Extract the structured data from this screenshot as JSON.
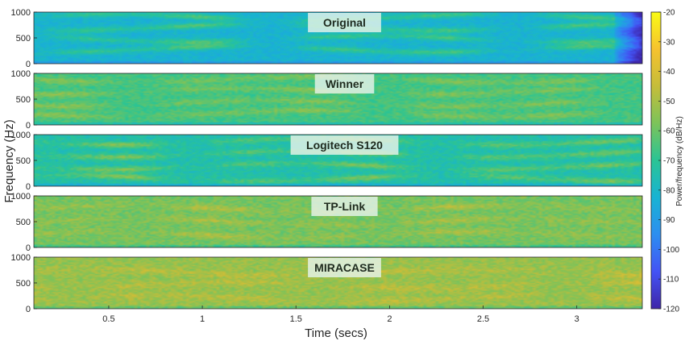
{
  "chart_data": {
    "type": "heatmap",
    "xlabel": "Time (secs)",
    "ylabel": "Frequency (Hz)",
    "xlim": [
      0.1,
      3.35
    ],
    "ylim": [
      0,
      1000
    ],
    "xticks": [
      0.5,
      1,
      1.5,
      2,
      2.5,
      3
    ],
    "xtick_labels": [
      "0.5",
      "1",
      "1.5",
      "2",
      "2.5",
      "3"
    ],
    "yticks": [
      0,
      500,
      1000
    ],
    "ytick_labels": [
      "0",
      "500",
      "1000"
    ],
    "colorbar": {
      "label": "Power/frequency (dB/Hz)",
      "range": [
        -120,
        -20
      ],
      "ticks": [
        -20,
        -30,
        -40,
        -50,
        -60,
        -70,
        -80,
        -90,
        -100,
        -110,
        -120
      ],
      "tick_labels": [
        "-20",
        "-30",
        "-40",
        "-50",
        "-60",
        "-70",
        "-80",
        "-90",
        "-100",
        "-110",
        "-120"
      ],
      "colormap": [
        "#3e26a8",
        "#4353f5",
        "#2d8ef0",
        "#18b3d3",
        "#2ac495",
        "#7cc35a",
        "#c5bd3a",
        "#f6c22f",
        "#f9fb15"
      ]
    },
    "panels": [
      {
        "name": "Original",
        "base_db": -75,
        "contrast": 20,
        "noise": 4,
        "formants": [
          280,
          480,
          700,
          900
        ],
        "dark_tail_from": 3.2
      },
      {
        "name": "Winner",
        "base_db": -62,
        "contrast": 12,
        "noise": 5,
        "formants": [
          220,
          420,
          650,
          880
        ],
        "dark_tail_from": null
      },
      {
        "name": "Logitech S120",
        "base_db": -68,
        "contrast": 18,
        "noise": 5,
        "formants": [
          150,
          380,
          620,
          860
        ],
        "dark_tail_from": null
      },
      {
        "name": "TP-Link",
        "base_db": -55,
        "contrast": 9,
        "noise": 6,
        "formants": [
          250,
          500,
          750
        ],
        "dark_tail_from": null
      },
      {
        "name": "MIRACASE",
        "base_db": -50,
        "contrast": 8,
        "noise": 6,
        "formants": [
          200,
          450,
          700
        ],
        "dark_tail_from": null
      }
    ]
  }
}
